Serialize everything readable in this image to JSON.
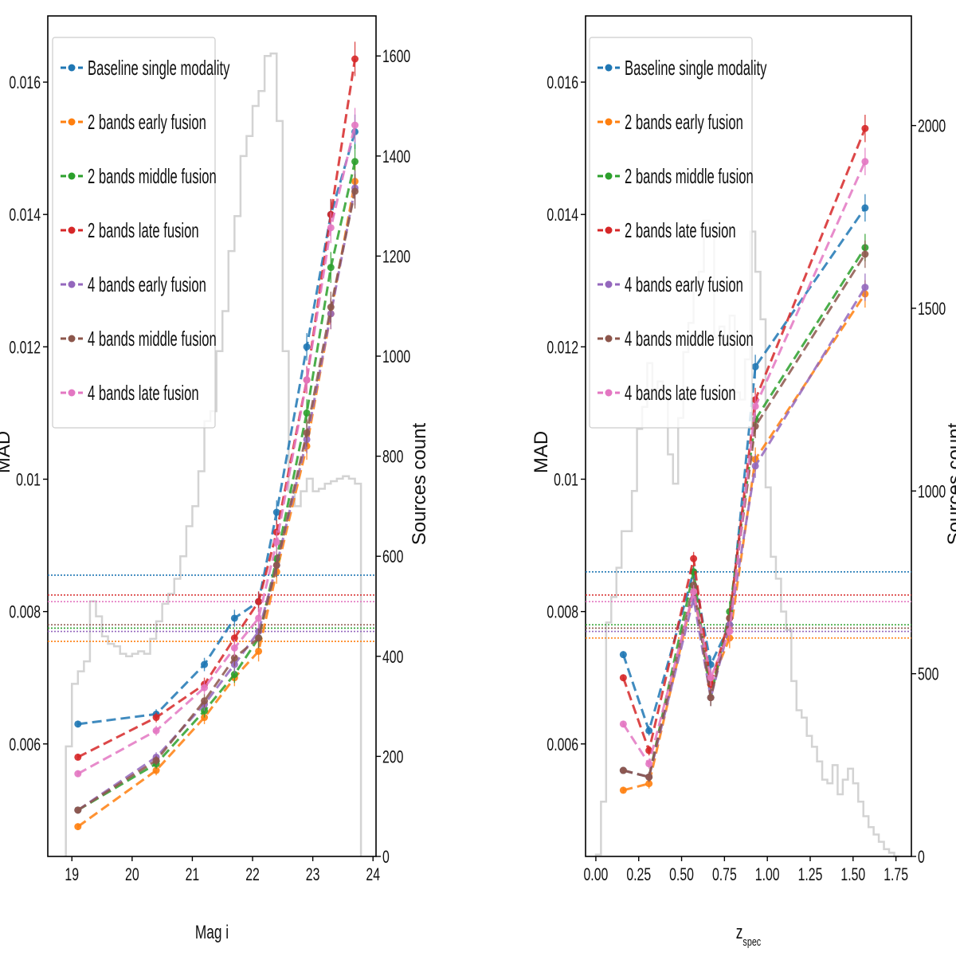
{
  "legend_entries": [
    "Baseline single modality",
    "2 bands early fusion",
    "2 bands middle fusion",
    "2 bands late fusion",
    "4 bands early fusion",
    "4 bands middle fusion",
    "4 bands late fusion"
  ],
  "chart_data": [
    {
      "type": "line",
      "panel": "left",
      "xlabel": "Mag i",
      "ylabel": "MAD",
      "y2label": "Sources count",
      "xlim": [
        18.6,
        24.05
      ],
      "ylim": [
        0.0043,
        0.017
      ],
      "y2lim": [
        0,
        1680
      ],
      "xticks": [
        19,
        20,
        21,
        22,
        23,
        24
      ],
      "yticks": [
        0.006,
        0.008,
        0.01,
        0.012,
        0.014,
        0.016
      ],
      "y2ticks": [
        0,
        200,
        400,
        600,
        800,
        1000,
        1200,
        1400,
        1600
      ],
      "x": [
        19.1,
        20.4,
        21.2,
        21.7,
        22.1,
        22.4,
        22.9,
        23.3,
        23.7
      ],
      "series": [
        {
          "name": "Baseline single modality",
          "color": "#1f77b4",
          "values": [
            0.0063,
            0.00645,
            0.0072,
            0.0079,
            0.00815,
            0.0095,
            0.012,
            0.014,
            0.01525
          ],
          "hline": 0.00855
        },
        {
          "name": "2 bands early fusion",
          "color": "#ff7f0e",
          "values": [
            0.00475,
            0.0056,
            0.0064,
            0.007,
            0.0074,
            0.0086,
            0.0105,
            0.0125,
            0.0145
          ],
          "hline": 0.00755
        },
        {
          "name": "2 bands middle fusion",
          "color": "#2ca02c",
          "values": [
            0.005,
            0.0057,
            0.0065,
            0.00705,
            0.0076,
            0.0088,
            0.011,
            0.0132,
            0.0148
          ],
          "hline": 0.00775
        },
        {
          "name": "2 bands late fusion",
          "color": "#d62728",
          "values": [
            0.0058,
            0.0064,
            0.0069,
            0.0076,
            0.00815,
            0.0092,
            0.0115,
            0.014,
            0.01635
          ],
          "hline": 0.00825
        },
        {
          "name": "4 bands early fusion",
          "color": "#9467bd",
          "values": [
            0.005,
            0.0058,
            0.0066,
            0.0072,
            0.0077,
            0.0087,
            0.0106,
            0.0125,
            0.0144
          ],
          "hline": 0.0077
        },
        {
          "name": "4 bands middle fusion",
          "color": "#8c564b",
          "values": [
            0.005,
            0.00575,
            0.00665,
            0.0073,
            0.0076,
            0.0087,
            0.0107,
            0.0126,
            0.01435
          ],
          "hline": 0.0078
        },
        {
          "name": "4 bands late fusion",
          "color": "#e377c2",
          "values": [
            0.00555,
            0.0062,
            0.00685,
            0.00745,
            0.0079,
            0.00905,
            0.0115,
            0.0138,
            0.01535
          ],
          "hline": 0.00815
        }
      ],
      "histogram": {
        "edges": [
          18.9,
          19.0,
          19.1,
          19.2,
          19.3,
          19.4,
          19.5,
          19.6,
          19.7,
          19.8,
          19.9,
          20.0,
          20.1,
          20.2,
          20.3,
          20.4,
          20.5,
          20.6,
          20.7,
          20.8,
          20.9,
          21.0,
          21.1,
          21.2,
          21.3,
          21.4,
          21.5,
          21.6,
          21.7,
          21.8,
          21.9,
          22.0,
          22.1,
          22.2,
          22.3,
          22.4,
          22.5,
          22.6,
          22.7,
          22.8,
          22.9,
          23.0,
          23.1,
          23.2,
          23.3,
          23.4,
          23.5,
          23.6,
          23.7,
          23.8
        ],
        "counts": [
          220,
          345,
          370,
          390,
          510,
          480,
          440,
          425,
          420,
          405,
          400,
          405,
          410,
          405,
          435,
          470,
          505,
          525,
          555,
          600,
          660,
          700,
          770,
          870,
          890,
          1010,
          1090,
          1210,
          1280,
          1400,
          1440,
          1500,
          1530,
          1600,
          1605,
          1470,
          1010,
          730,
          700,
          730,
          755,
          730,
          735,
          745,
          750,
          755,
          760,
          755,
          745
        ]
      }
    },
    {
      "type": "line",
      "panel": "right",
      "xlabel": "z",
      "xlabel_sub": "spec",
      "ylabel": "MAD",
      "y2label": "Sources count",
      "xlim": [
        -0.06,
        1.84
      ],
      "ylim": [
        0.0043,
        0.017
      ],
      "y2lim": [
        0,
        2300
      ],
      "xticks": [
        "0.00",
        "0.25",
        "0.50",
        "0.75",
        "1.00",
        "1.25",
        "1.50",
        "1.75"
      ],
      "xtick_values": [
        0.0,
        0.25,
        0.5,
        0.75,
        1.0,
        1.25,
        1.5,
        1.75
      ],
      "yticks": [
        0.006,
        0.008,
        0.01,
        0.012,
        0.014,
        0.016
      ],
      "y2ticks": [
        0,
        500,
        1000,
        1500,
        2000
      ],
      "x": [
        0.16,
        0.31,
        0.57,
        0.67,
        0.78,
        0.93,
        1.57
      ],
      "series": [
        {
          "name": "Baseline single modality",
          "color": "#1f77b4",
          "values": [
            0.00735,
            0.0062,
            0.0086,
            0.0072,
            0.0078,
            0.0117,
            0.0141
          ],
          "hline": 0.0086
        },
        {
          "name": "2 bands early fusion",
          "color": "#ff7f0e",
          "values": [
            0.0053,
            0.0054,
            0.0083,
            0.0069,
            0.0076,
            0.0103,
            0.0128
          ],
          "hline": 0.0076
        },
        {
          "name": "2 bands middle fusion",
          "color": "#2ca02c",
          "values": [
            0.0056,
            0.0055,
            0.0086,
            0.0067,
            0.008,
            0.0109,
            0.0135
          ],
          "hline": 0.0078
        },
        {
          "name": "2 bands late fusion",
          "color": "#d62728",
          "values": [
            0.007,
            0.0059,
            0.0088,
            0.0069,
            0.0079,
            0.0112,
            0.0153
          ],
          "hline": 0.00825
        },
        {
          "name": "4 bands early fusion",
          "color": "#9467bd",
          "values": [
            0.0056,
            0.0055,
            0.0082,
            0.0067,
            0.0078,
            0.0102,
            0.0129
          ],
          "hline": 0.0077
        },
        {
          "name": "4 bands middle fusion",
          "color": "#8c564b",
          "values": [
            0.0056,
            0.0055,
            0.0084,
            0.0067,
            0.0079,
            0.0108,
            0.0134
          ],
          "hline": 0.00775
        },
        {
          "name": "4 bands late fusion",
          "color": "#e377c2",
          "values": [
            0.0063,
            0.0057,
            0.0083,
            0.007,
            0.0077,
            0.0111,
            0.0148
          ],
          "hline": 0.00815
        }
      ],
      "histogram": {
        "edges": [
          0.0,
          0.03,
          0.06,
          0.09,
          0.12,
          0.15,
          0.18,
          0.21,
          0.24,
          0.27,
          0.3,
          0.33,
          0.36,
          0.39,
          0.42,
          0.45,
          0.48,
          0.51,
          0.54,
          0.57,
          0.6,
          0.63,
          0.66,
          0.69,
          0.72,
          0.75,
          0.78,
          0.81,
          0.84,
          0.87,
          0.9,
          0.93,
          0.96,
          0.99,
          1.02,
          1.05,
          1.08,
          1.11,
          1.14,
          1.17,
          1.2,
          1.23,
          1.26,
          1.29,
          1.32,
          1.35,
          1.38,
          1.41,
          1.44,
          1.47,
          1.5,
          1.53,
          1.56,
          1.59,
          1.62,
          1.65,
          1.68,
          1.71,
          1.74,
          1.77
        ],
        "counts": [
          5,
          150,
          640,
          710,
          790,
          890,
          890,
          1000,
          1170,
          1230,
          1350,
          1280,
          1300,
          1280,
          1100,
          1020,
          1200,
          1380,
          1460,
          1550,
          1600,
          1740,
          1720,
          1420,
          1450,
          1400,
          1480,
          1270,
          1250,
          1360,
          1710,
          1600,
          1470,
          1010,
          820,
          760,
          670,
          620,
          480,
          400,
          380,
          330,
          300,
          260,
          210,
          200,
          250,
          170,
          210,
          240,
          200,
          150,
          110,
          80,
          60,
          40,
          20,
          10,
          0
        ]
      }
    }
  ]
}
